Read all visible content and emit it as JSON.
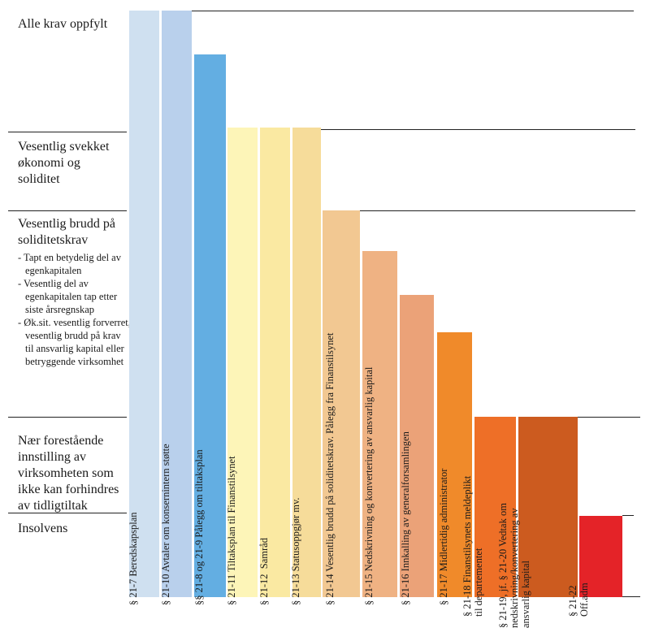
{
  "levels": [
    {
      "label": "Alle krav oppfylt"
    },
    {
      "label": "Vesentlig svekket\nøkonomi og\nsoliditet"
    },
    {
      "label": "Vesentlig brudd på\nsoliditetskrav"
    },
    {
      "label": "Nær forestående\ninnstilling av\nvirksomheten som\nikke kan forhindres\nav tidligtiltak"
    },
    {
      "label": "Insolvens"
    }
  ],
  "criteria": [
    "- Tapt en betydelig del av egenkapitalen",
    "- Vesentlig del av egenkapitalen tap etter siste årsregnskap",
    "- Øk.sit. vesentlig forverret, vesentlig brudd på krav til ansvarlig kapital eller betryggende virksomhet"
  ],
  "bars": [
    {
      "label": "§ 21-7 Beredskapsplan",
      "color": "#cfe0f0"
    },
    {
      "label": "§ 21-10 Avtaler om konsernintern støtte",
      "color": "#b9d0ec"
    },
    {
      "label": "§§ 21-8 og 21-9 Pålegg om tiltaksplan",
      "color": "#63aee2"
    },
    {
      "label": "§ 21-11 Tiltaksplan til Finanstilsynet",
      "color": "#fdf5b8"
    },
    {
      "label": "§ 21-12  Samråd",
      "color": "#fae9a2"
    },
    {
      "label": "§ 21-13 Statusoppgjør mv.",
      "color": "#f6dc9a"
    },
    {
      "label": "§ 21-14 Vesentlig brudd på soliditetskrav. Pålegg fra Finanstilsynet",
      "color": "#f2c892"
    },
    {
      "label": "§ 21-15 Nedskrivning og konvertering av ansvarlig kapital",
      "color": "#efb283"
    },
    {
      "label": "§ 21-16 Innkalling av generalforsamlingen",
      "color": "#eba278"
    },
    {
      "label": "§ 21-17 Midlertidig administrator",
      "color": "#f08a2a"
    },
    {
      "label": "§ 21-18 Finanstilsynets meldeplikt\ntil departementet",
      "color": "#ee6f27"
    },
    {
      "label": "§ 21-19, jf. § 21-20 Vedtak om\nnedskrivning/konvertering av\nansvarlig kapital",
      "color": "#cc5b1f"
    },
    {
      "label": "§ 21-22\nOff.adm",
      "color": "#e42328"
    }
  ]
}
